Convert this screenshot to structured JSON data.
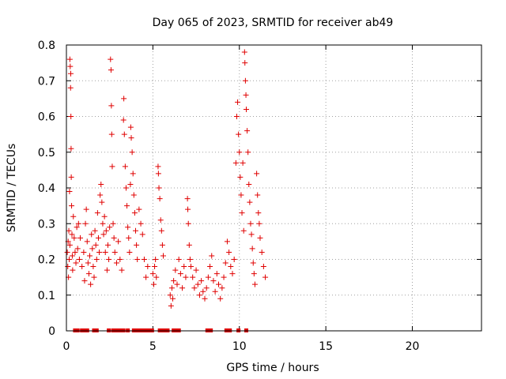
{
  "chart_data": {
    "type": "scatter",
    "title": "Day 065 of 2023, SRMTID for receiver ab49",
    "xlabel": "GPS time / hours",
    "ylabel": "SRMTID / TECUs",
    "xlim": [
      0,
      24
    ],
    "ylim": [
      0,
      0.8
    ],
    "xticks": [
      0,
      5,
      10,
      15,
      20
    ],
    "xtick_labels": [
      "0",
      "5",
      "10",
      "15",
      "20"
    ],
    "yticks": [
      0,
      0.1,
      0.2,
      0.3,
      0.4,
      0.5,
      0.6,
      0.7,
      0.8
    ],
    "ytick_labels": [
      "0",
      "0.1",
      "0.2",
      "0.3",
      "0.4",
      "0.5",
      "0.6",
      "0.7",
      "0.8"
    ],
    "grid": true,
    "marker": "+",
    "color": "#e00000",
    "series": [
      {
        "name": "SRMTID",
        "points": [
          [
            0.05,
            0.22
          ],
          [
            0.08,
            0.18
          ],
          [
            0.1,
            0.25
          ],
          [
            0.12,
            0.15
          ],
          [
            0.14,
            0.28
          ],
          [
            0.16,
            0.2
          ],
          [
            0.18,
            0.39
          ],
          [
            0.2,
            0.24
          ],
          [
            0.2,
            0.76
          ],
          [
            0.22,
            0.74
          ],
          [
            0.24,
            0.68
          ],
          [
            0.25,
            0.72
          ],
          [
            0.26,
            0.6
          ],
          [
            0.27,
            0.51
          ],
          [
            0.28,
            0.43
          ],
          [
            0.3,
            0.35
          ],
          [
            0.32,
            0.27
          ],
          [
            0.34,
            0.21
          ],
          [
            0.36,
            0.17
          ],
          [
            0.4,
            0.32
          ],
          [
            0.45,
            0.26
          ],
          [
            0.5,
            0.22
          ],
          [
            0.55,
            0.19
          ],
          [
            0.6,
            0.29
          ],
          [
            0.65,
            0.23
          ],
          [
            0.7,
            0.3
          ],
          [
            0.75,
            0.2
          ],
          [
            0.8,
            0.26
          ],
          [
            0.9,
            0.18
          ],
          [
            1.0,
            0.22
          ],
          [
            1.05,
            0.14
          ],
          [
            1.1,
            0.3
          ],
          [
            1.15,
            0.34
          ],
          [
            1.2,
            0.25
          ],
          [
            1.25,
            0.19
          ],
          [
            1.3,
            0.16
          ],
          [
            1.35,
            0.21
          ],
          [
            1.4,
            0.13
          ],
          [
            1.45,
            0.27
          ],
          [
            1.5,
            0.23
          ],
          [
            1.55,
            0.18
          ],
          [
            1.6,
            0.15
          ],
          [
            1.65,
            0.28
          ],
          [
            1.7,
            0.24
          ],
          [
            1.75,
            0.2
          ],
          [
            1.8,
            0.33
          ],
          [
            1.85,
            0.26
          ],
          [
            1.9,
            0.22
          ],
          [
            1.95,
            0.38
          ],
          [
            2.0,
            0.41
          ],
          [
            2.05,
            0.36
          ],
          [
            2.1,
            0.3
          ],
          [
            2.15,
            0.27
          ],
          [
            2.2,
            0.32
          ],
          [
            2.25,
            0.22
          ],
          [
            2.3,
            0.28
          ],
          [
            2.35,
            0.17
          ],
          [
            2.4,
            0.24
          ],
          [
            2.45,
            0.2
          ],
          [
            2.5,
            0.29
          ],
          [
            2.55,
            0.76
          ],
          [
            2.58,
            0.73
          ],
          [
            2.6,
            0.63
          ],
          [
            2.62,
            0.55
          ],
          [
            2.65,
            0.46
          ],
          [
            2.7,
            0.3
          ],
          [
            2.75,
            0.26
          ],
          [
            2.8,
            0.22
          ],
          [
            2.9,
            0.19
          ],
          [
            3.0,
            0.25
          ],
          [
            3.1,
            0.2
          ],
          [
            3.2,
            0.17
          ],
          [
            3.3,
            0.59
          ],
          [
            3.32,
            0.65
          ],
          [
            3.35,
            0.55
          ],
          [
            3.4,
            0.46
          ],
          [
            3.45,
            0.4
          ],
          [
            3.5,
            0.35
          ],
          [
            3.55,
            0.29
          ],
          [
            3.6,
            0.26
          ],
          [
            3.65,
            0.22
          ],
          [
            3.7,
            0.41
          ],
          [
            3.72,
            0.57
          ],
          [
            3.75,
            0.54
          ],
          [
            3.8,
            0.5
          ],
          [
            3.85,
            0.44
          ],
          [
            3.9,
            0.38
          ],
          [
            3.95,
            0.33
          ],
          [
            4.0,
            0.28
          ],
          [
            4.05,
            0.24
          ],
          [
            4.1,
            0.2
          ],
          [
            4.2,
            0.34
          ],
          [
            4.3,
            0.3
          ],
          [
            4.4,
            0.27
          ],
          [
            4.5,
            0.2
          ],
          [
            4.6,
            0.15
          ],
          [
            4.7,
            0.18
          ],
          [
            5.0,
            0.16
          ],
          [
            5.05,
            0.13
          ],
          [
            5.1,
            0.18
          ],
          [
            5.15,
            0.2
          ],
          [
            5.2,
            0.15
          ],
          [
            5.3,
            0.46
          ],
          [
            5.32,
            0.44
          ],
          [
            5.35,
            0.4
          ],
          [
            5.4,
            0.37
          ],
          [
            5.45,
            0.31
          ],
          [
            5.5,
            0.28
          ],
          [
            5.55,
            0.24
          ],
          [
            5.6,
            0.21
          ],
          [
            6.0,
            0.1
          ],
          [
            6.05,
            0.07
          ],
          [
            6.1,
            0.12
          ],
          [
            6.15,
            0.09
          ],
          [
            6.2,
            0.14
          ],
          [
            6.3,
            0.17
          ],
          [
            6.4,
            0.13
          ],
          [
            6.5,
            0.2
          ],
          [
            6.6,
            0.16
          ],
          [
            6.7,
            0.12
          ],
          [
            6.8,
            0.18
          ],
          [
            6.9,
            0.15
          ],
          [
            7.0,
            0.37
          ],
          [
            7.02,
            0.34
          ],
          [
            7.05,
            0.3
          ],
          [
            7.1,
            0.24
          ],
          [
            7.15,
            0.2
          ],
          [
            7.2,
            0.18
          ],
          [
            7.3,
            0.15
          ],
          [
            7.4,
            0.12
          ],
          [
            7.5,
            0.17
          ],
          [
            7.6,
            0.13
          ],
          [
            7.7,
            0.1
          ],
          [
            7.8,
            0.14
          ],
          [
            7.9,
            0.11
          ],
          [
            8.0,
            0.09
          ],
          [
            8.1,
            0.12
          ],
          [
            8.2,
            0.15
          ],
          [
            8.3,
            0.18
          ],
          [
            8.4,
            0.21
          ],
          [
            8.5,
            0.14
          ],
          [
            8.6,
            0.11
          ],
          [
            8.7,
            0.16
          ],
          [
            8.8,
            0.13
          ],
          [
            8.9,
            0.09
          ],
          [
            9.0,
            0.12
          ],
          [
            9.1,
            0.15
          ],
          [
            9.2,
            0.19
          ],
          [
            9.3,
            0.25
          ],
          [
            9.4,
            0.22
          ],
          [
            9.5,
            0.18
          ],
          [
            9.6,
            0.16
          ],
          [
            9.7,
            0.2
          ],
          [
            9.8,
            0.47
          ],
          [
            9.85,
            0.6
          ],
          [
            9.9,
            0.64
          ],
          [
            9.95,
            0.55
          ],
          [
            10.0,
            0.5
          ],
          [
            10.05,
            0.43
          ],
          [
            10.1,
            0.38
          ],
          [
            10.15,
            0.33
          ],
          [
            10.2,
            0.47
          ],
          [
            10.25,
            0.28
          ],
          [
            10.3,
            0.78
          ],
          [
            10.32,
            0.75
          ],
          [
            10.35,
            0.7
          ],
          [
            10.38,
            0.66
          ],
          [
            10.4,
            0.62
          ],
          [
            10.45,
            0.56
          ],
          [
            10.5,
            0.5
          ],
          [
            10.55,
            0.41
          ],
          [
            10.6,
            0.36
          ],
          [
            10.65,
            0.3
          ],
          [
            10.7,
            0.27
          ],
          [
            10.75,
            0.23
          ],
          [
            10.8,
            0.19
          ],
          [
            10.85,
            0.16
          ],
          [
            10.9,
            0.13
          ],
          [
            11.0,
            0.44
          ],
          [
            11.05,
            0.38
          ],
          [
            11.1,
            0.33
          ],
          [
            11.15,
            0.3
          ],
          [
            11.2,
            0.26
          ],
          [
            11.3,
            0.22
          ],
          [
            11.4,
            0.18
          ],
          [
            11.5,
            0.15
          ]
        ]
      }
    ],
    "zero_points": [
      0.5,
      0.65,
      0.9,
      1.05,
      1.2,
      1.6,
      1.75,
      2.45,
      2.7,
      2.85,
      3.0,
      3.15,
      3.3,
      3.55,
      3.9,
      4.05,
      4.2,
      4.35,
      4.5,
      4.65,
      4.8,
      4.95,
      5.4,
      5.55,
      5.7,
      5.85,
      6.2,
      6.35,
      6.5,
      8.15,
      8.35,
      9.25,
      9.45,
      9.95,
      10.4
    ]
  }
}
